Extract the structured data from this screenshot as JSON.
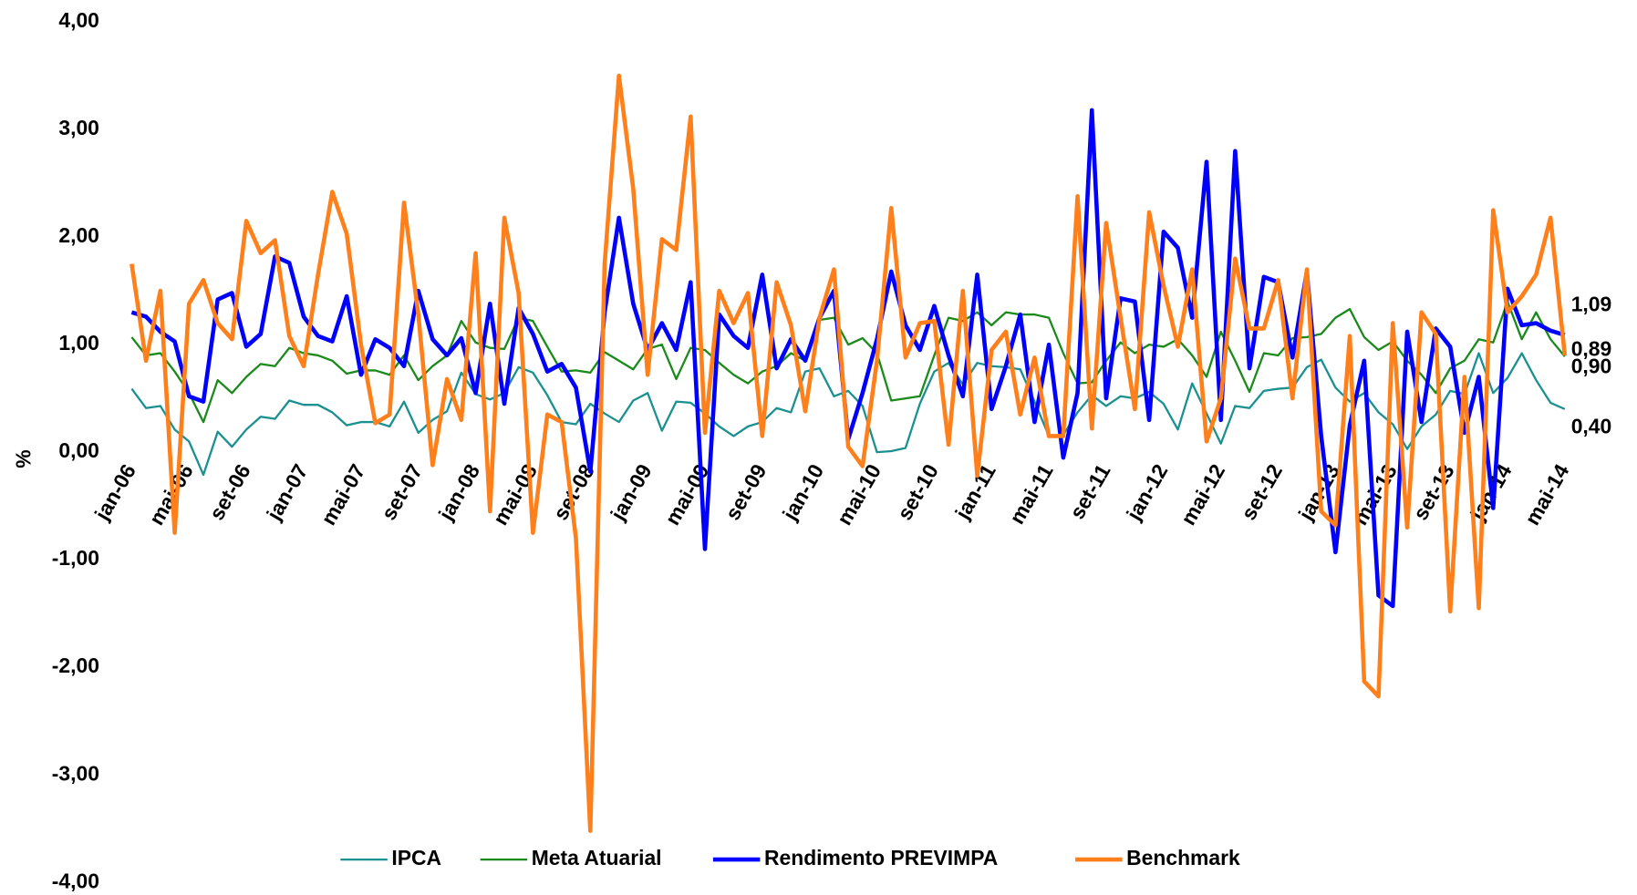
{
  "chart_data": {
    "type": "line",
    "y_label": "%",
    "categories": [
      "jan-06",
      null,
      null,
      null,
      "mai-06",
      null,
      null,
      null,
      "set-06",
      null,
      null,
      null,
      "jan-07",
      null,
      null,
      null,
      "mai-07",
      null,
      null,
      null,
      "set-07",
      null,
      null,
      null,
      "jan-08",
      null,
      null,
      null,
      "mai-08",
      null,
      null,
      null,
      "set-08",
      null,
      null,
      null,
      "jan-09",
      null,
      null,
      null,
      "mai-09",
      null,
      null,
      null,
      "set-09",
      null,
      null,
      null,
      "jan-10",
      null,
      null,
      null,
      "mai-10",
      null,
      null,
      null,
      "set-10",
      null,
      null,
      null,
      "jan-11",
      null,
      null,
      null,
      "mai-11",
      null,
      null,
      null,
      "set-11",
      null,
      null,
      null,
      "jan-12",
      null,
      null,
      null,
      "mai-12",
      null,
      null,
      null,
      "set-12",
      null,
      null,
      null,
      "jan-13",
      null,
      null,
      null,
      "mai-13",
      null,
      null,
      null,
      "set-13",
      null,
      null,
      null,
      "jan-14",
      null,
      null,
      null,
      "mai-14"
    ],
    "ylim": [
      -4,
      4
    ],
    "yticks": [
      {
        "value": 4,
        "label": "4,00"
      },
      {
        "value": 3,
        "label": "3,00"
      },
      {
        "value": 2,
        "label": "2,00"
      },
      {
        "value": 1,
        "label": "1,00"
      },
      {
        "value": 0,
        "label": "0,00"
      },
      {
        "value": -1,
        "label": "-1,00"
      },
      {
        "value": -2,
        "label": "-2,00"
      },
      {
        "value": -3,
        "label": "-3,00"
      },
      {
        "value": -4,
        "label": "-4,00"
      }
    ],
    "legend": "bottom",
    "series": [
      {
        "name": "IPCA",
        "color": "#1a9090",
        "width": 2,
        "label_color": "#0f8080",
        "values": [
          0.59,
          0.41,
          0.43,
          0.21,
          0.1,
          -0.21,
          0.19,
          0.05,
          0.21,
          0.33,
          0.31,
          0.48,
          0.44,
          0.44,
          0.37,
          0.25,
          0.28,
          0.28,
          0.24,
          0.47,
          0.18,
          0.3,
          0.38,
          0.74,
          0.54,
          0.49,
          0.55,
          0.79,
          0.74,
          0.53,
          0.28,
          0.26,
          0.45,
          0.36,
          0.28,
          0.48,
          0.55,
          0.2,
          0.47,
          0.46,
          0.36,
          0.24,
          0.15,
          0.24,
          0.28,
          0.41,
          0.37,
          0.75,
          0.78,
          0.52,
          0.57,
          0.43,
          0.0,
          0.01,
          0.04,
          0.45,
          0.75,
          0.83,
          0.63,
          0.83,
          0.8,
          0.79,
          0.77,
          0.47,
          0.15,
          0.16,
          0.37,
          0.53,
          0.43,
          0.52,
          0.5,
          0.56,
          0.45,
          0.21,
          0.64,
          0.36,
          0.08,
          0.43,
          0.41,
          0.57,
          0.59,
          0.6,
          0.79,
          0.86,
          0.6,
          0.47,
          0.55,
          0.37,
          0.26,
          0.03,
          0.24,
          0.35,
          0.57,
          0.54,
          0.92,
          0.55,
          0.69,
          0.92,
          0.67,
          0.46,
          0.4
        ],
        "end_label": "0,40"
      },
      {
        "name": "Meta Atuarial",
        "color": "#1a8a1a",
        "width": 2,
        "label_color": "#2eb82e",
        "values": [
          1.07,
          0.9,
          0.92,
          0.75,
          0.55,
          0.28,
          0.67,
          0.55,
          0.7,
          0.82,
          0.8,
          0.97,
          0.92,
          0.9,
          0.85,
          0.73,
          0.76,
          0.76,
          0.72,
          0.9,
          0.67,
          0.8,
          0.9,
          1.22,
          1.02,
          0.97,
          0.96,
          1.25,
          1.22,
          0.98,
          0.75,
          0.76,
          0.74,
          0.93,
          0.85,
          0.77,
          0.96,
          1.0,
          0.68,
          0.97,
          0.95,
          0.83,
          0.72,
          0.64,
          0.75,
          0.8,
          0.92,
          0.85,
          1.23,
          1.25,
          1.0,
          1.06,
          0.92,
          0.48,
          0.5,
          0.52,
          0.9,
          1.25,
          1.22,
          1.3,
          1.18,
          1.3,
          1.28,
          1.28,
          1.25,
          0.92,
          0.64,
          0.65,
          0.85,
          1.02,
          0.92,
          1.0,
          0.98,
          1.05,
          0.9,
          0.7,
          1.12,
          0.85,
          0.56,
          0.92,
          0.9,
          1.06,
          1.07,
          1.1,
          1.25,
          1.33,
          1.07,
          0.95,
          1.03,
          0.85,
          0.72,
          0.55,
          0.78,
          0.85,
          1.05,
          1.02,
          1.4,
          1.05,
          1.3,
          1.05,
          0.89
        ],
        "end_label": "0,89"
      },
      {
        "name": "Rendimento PREVIMPA",
        "color": "#0000ff",
        "width": 4,
        "label_color": "#0000ff",
        "values": [
          1.3,
          1.26,
          1.12,
          1.03,
          0.52,
          0.47,
          1.42,
          1.48,
          0.98,
          1.1,
          1.82,
          1.76,
          1.26,
          1.08,
          1.03,
          1.45,
          0.72,
          1.05,
          0.97,
          0.8,
          1.5,
          1.05,
          0.9,
          1.06,
          0.55,
          1.38,
          0.45,
          1.34,
          1.1,
          0.75,
          0.82,
          0.6,
          -0.18,
          1.3,
          2.18,
          1.38,
          0.95,
          1.2,
          0.95,
          1.58,
          -0.9,
          1.28,
          1.08,
          0.97,
          1.65,
          0.78,
          1.05,
          0.85,
          1.25,
          1.5,
          0.12,
          0.55,
          1.05,
          1.68,
          1.18,
          0.95,
          1.36,
          0.9,
          0.52,
          1.65,
          0.4,
          0.8,
          1.28,
          0.28,
          1.0,
          -0.05,
          0.55,
          3.18,
          0.5,
          1.43,
          1.4,
          0.3,
          2.05,
          1.9,
          1.25,
          2.7,
          0.3,
          2.8,
          0.78,
          1.63,
          1.58,
          0.88,
          1.68,
          0.15,
          -0.93,
          0.25,
          0.85,
          -1.33,
          -1.43,
          1.12,
          0.28,
          1.15,
          0.98,
          0.18,
          0.7,
          -0.52,
          1.52,
          1.18,
          1.2,
          1.13,
          1.09
        ],
        "end_label": "1,09"
      },
      {
        "name": "Benchmark",
        "color": "#ff7f1a",
        "width": 4,
        "label_color": "#ff7f1a",
        "values": [
          1.75,
          0.85,
          1.5,
          -0.75,
          1.38,
          1.6,
          1.2,
          1.05,
          2.15,
          1.85,
          1.97,
          1.08,
          0.8,
          1.65,
          2.42,
          2.03,
          1.0,
          0.27,
          0.35,
          2.32,
          1.28,
          -0.12,
          0.68,
          0.3,
          1.85,
          -0.55,
          2.18,
          1.48,
          -0.75,
          0.35,
          0.28,
          -0.8,
          -3.52,
          1.75,
          3.5,
          2.45,
          0.72,
          1.98,
          1.88,
          3.12,
          0.18,
          1.5,
          1.2,
          1.48,
          0.15,
          1.58,
          1.18,
          0.38,
          1.25,
          1.7,
          0.05,
          -0.13,
          0.85,
          2.27,
          0.88,
          1.2,
          1.22,
          0.07,
          1.5,
          -0.22,
          0.95,
          1.12,
          0.35,
          0.88,
          0.15,
          0.15,
          2.38,
          0.22,
          2.13,
          1.25,
          0.4,
          2.23,
          1.55,
          0.98,
          1.7,
          0.1,
          0.5,
          1.8,
          1.15,
          1.15,
          1.6,
          0.5,
          1.7,
          -0.55,
          -0.68,
          1.08,
          -2.13,
          -2.27,
          1.2,
          -0.7,
          1.3,
          1.1,
          -1.48,
          0.7,
          -1.45,
          2.25,
          1.3,
          1.45,
          1.65,
          2.18,
          0.9
        ],
        "end_label": "0,90"
      }
    ]
  }
}
